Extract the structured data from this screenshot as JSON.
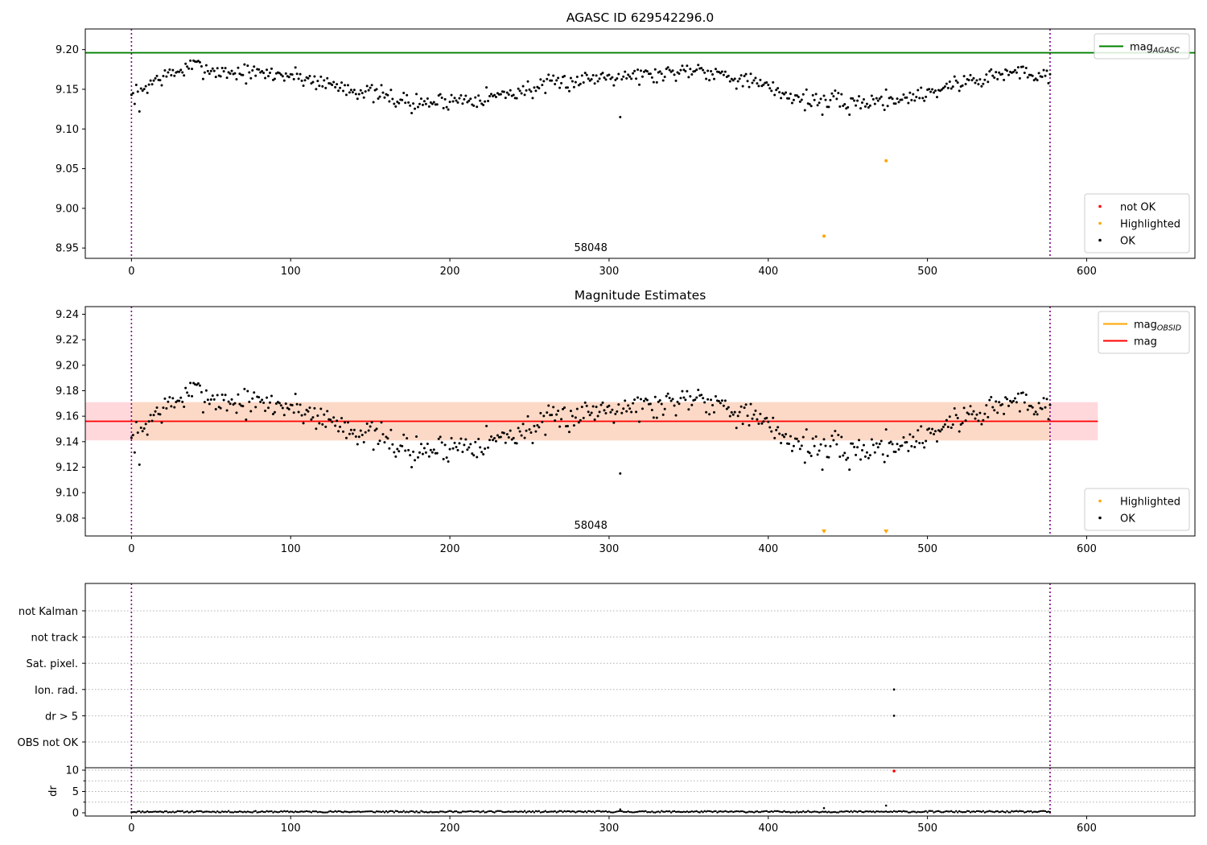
{
  "chart_data": [
    {
      "id": "top",
      "type": "scatter",
      "title": "AGASC ID 629542296.0",
      "xlabel": "",
      "ylabel": "",
      "xlim": [
        -29,
        668
      ],
      "ylim": [
        8.937,
        9.226
      ],
      "xticks": [
        0,
        100,
        200,
        300,
        400,
        500,
        600
      ],
      "yticks": [
        8.95,
        9.0,
        9.05,
        9.1,
        9.15,
        9.2
      ],
      "ytick_decimals": 2,
      "vlines": [
        0,
        577
      ],
      "vline_color": "#800080",
      "hline": {
        "y": 9.196,
        "color": "#008000",
        "name": "mag",
        "sub": "AGASC"
      },
      "annotation": {
        "text": "58048",
        "x": 288.5
      },
      "series": [
        {
          "name": "not OK",
          "color": "#ff0000",
          "points": []
        },
        {
          "name": "Highlighted",
          "color": "#ffa500",
          "points": [
            [
              435,
              8.965
            ],
            [
              474,
              9.06
            ]
          ]
        },
        {
          "name": "OK",
          "color": "#000000",
          "pattern": {
            "n": 578,
            "seed": 7,
            "base_knots": [
              [
                0,
                9.14
              ],
              [
                15,
                9.162
              ],
              [
                40,
                9.18
              ],
              [
                55,
                9.172
              ],
              [
                100,
                9.168
              ],
              [
                150,
                9.145
              ],
              [
                180,
                9.132
              ],
              [
                230,
                9.142
              ],
              [
                270,
                9.158
              ],
              [
                300,
                9.168
              ],
              [
                330,
                9.168
              ],
              [
                355,
                9.177
              ],
              [
                385,
                9.162
              ],
              [
                420,
                9.138
              ],
              [
                455,
                9.133
              ],
              [
                490,
                9.14
              ],
              [
                520,
                9.158
              ],
              [
                555,
                9.172
              ],
              [
                577,
                9.168
              ]
            ],
            "noise": 0.008,
            "outliers": [
              [
                307,
                9.115
              ],
              [
                5,
                9.122
              ],
              [
                176,
                9.12
              ],
              [
                434,
                9.118
              ],
              [
                451,
                9.118
              ]
            ]
          }
        }
      ],
      "legends": [
        {
          "loc": "upper right",
          "entries": [
            {
              "kind": "line",
              "label": "mag",
              "sub": "AGASC",
              "color": "#008000"
            }
          ]
        },
        {
          "loc": "lower right",
          "entries": [
            {
              "kind": "dot",
              "label": "not OK",
              "color": "#ff0000"
            },
            {
              "kind": "dot",
              "label": "Highlighted",
              "color": "#ffa500"
            },
            {
              "kind": "dot",
              "label": "OK",
              "color": "#000000"
            }
          ]
        }
      ]
    },
    {
      "id": "mid",
      "type": "scatter",
      "title": "Magnitude Estimates",
      "xlabel": "",
      "ylabel": "",
      "xlim": [
        -29,
        668
      ],
      "ylim": [
        9.066,
        9.246
      ],
      "xticks": [
        0,
        100,
        200,
        300,
        400,
        500,
        600
      ],
      "yticks": [
        9.08,
        9.1,
        9.12,
        9.14,
        9.16,
        9.18,
        9.2,
        9.22,
        9.24
      ],
      "ytick_decimals": 2,
      "vlines": [
        0,
        577
      ],
      "vline_color": "#800080",
      "band_outer": {
        "x": [
          -29,
          607
        ],
        "y": [
          9.141,
          9.171
        ],
        "color": "#ffd8dc"
      },
      "band_inner": {
        "x": [
          0,
          577
        ],
        "y": [
          9.141,
          9.171
        ],
        "color": "#fcd9c6"
      },
      "hline": {
        "y": 9.156,
        "x": [
          -29,
          607
        ],
        "color": "#ff0000",
        "name": "mag"
      },
      "annotation": {
        "text": "58048",
        "x": 288.5
      },
      "markers_bottom": [
        {
          "x": 435,
          "color": "#ffa500"
        },
        {
          "x": 474,
          "color": "#ffa500"
        }
      ],
      "series": [
        {
          "name": "Highlighted",
          "color": "#ffa500",
          "points": []
        },
        {
          "name": "OK",
          "color": "#000000",
          "pattern": "same-as-top"
        }
      ],
      "legends": [
        {
          "loc": "upper right",
          "entries": [
            {
              "kind": "line",
              "label": "mag",
              "sub": "OBSID",
              "color": "#ffa500"
            },
            {
              "kind": "line",
              "label": "mag",
              "color": "#ff0000"
            }
          ]
        },
        {
          "loc": "lower right",
          "entries": [
            {
              "kind": "dot",
              "label": "Highlighted",
              "color": "#ffa500"
            },
            {
              "kind": "dot",
              "label": "OK",
              "color": "#000000"
            }
          ]
        }
      ]
    },
    {
      "id": "flags",
      "type": "scatter",
      "xlim": [
        -29,
        668
      ],
      "categories": [
        "not Kalman",
        "not track",
        "Sat. pixel.",
        "Ion. rad.",
        "dr > 5",
        "OBS not OK"
      ],
      "vlines": [
        0,
        577
      ],
      "vline_color": "#800080",
      "points": [
        {
          "x": 479,
          "category": "Ion. rad."
        },
        {
          "x": 479,
          "category": "dr > 5"
        }
      ]
    },
    {
      "id": "dr",
      "type": "scatter",
      "ylabel": "dr",
      "xlim": [
        -29,
        668
      ],
      "ylim": [
        -0.5,
        11
      ],
      "yticks": [
        0,
        5,
        10
      ],
      "xticks": [
        0,
        100,
        200,
        300,
        400,
        500,
        600
      ],
      "vlines": [
        0,
        577
      ],
      "vline_color": "#800080",
      "pattern": {
        "n": 578,
        "base": 0.25,
        "noise": 0.18
      },
      "points": [
        {
          "x": 307,
          "y": 0.8
        },
        {
          "x": 435,
          "y": 1.1
        },
        {
          "x": 474,
          "y": 1.7
        }
      ],
      "flagged": [
        {
          "x": 479,
          "y": 9.8,
          "color": "#ff0000"
        }
      ]
    }
  ]
}
